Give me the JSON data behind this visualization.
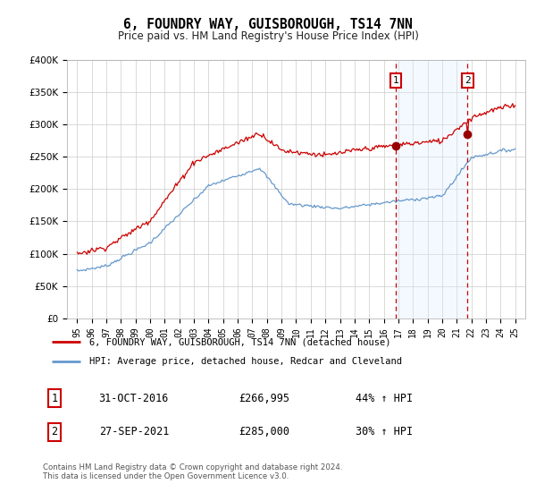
{
  "title": "6, FOUNDRY WAY, GUISBOROUGH, TS14 7NN",
  "subtitle": "Price paid vs. HM Land Registry's House Price Index (HPI)",
  "legend_label_red": "6, FOUNDRY WAY, GUISBOROUGH, TS14 7NN (detached house)",
  "legend_label_blue": "HPI: Average price, detached house, Redcar and Cleveland",
  "transaction1_date": "31-OCT-2016",
  "transaction1_price": "£266,995",
  "transaction1_hpi": "44% ↑ HPI",
  "transaction2_date": "27-SEP-2021",
  "transaction2_price": "£285,000",
  "transaction2_hpi": "30% ↑ HPI",
  "footer": "Contains HM Land Registry data © Crown copyright and database right 2024.\nThis data is licensed under the Open Government Licence v3.0.",
  "ylim": [
    0,
    400000
  ],
  "yticks": [
    0,
    50000,
    100000,
    150000,
    200000,
    250000,
    300000,
    350000,
    400000
  ],
  "ytick_labels": [
    "£0",
    "£50K",
    "£100K",
    "£150K",
    "£200K",
    "£250K",
    "£300K",
    "£350K",
    "£400K"
  ],
  "transaction1_year": 2016.83,
  "transaction2_year": 2021.75,
  "transaction1_value": 266995,
  "transaction2_value": 285000,
  "line_color_red": "#cc0000",
  "line_color_blue": "#6699cc",
  "bg_color": "#ffffff",
  "grid_color": "#cccccc",
  "vline_color": "#cc0000",
  "highlight_bg": "#ddeeff",
  "highlight_alpha": 0.3
}
